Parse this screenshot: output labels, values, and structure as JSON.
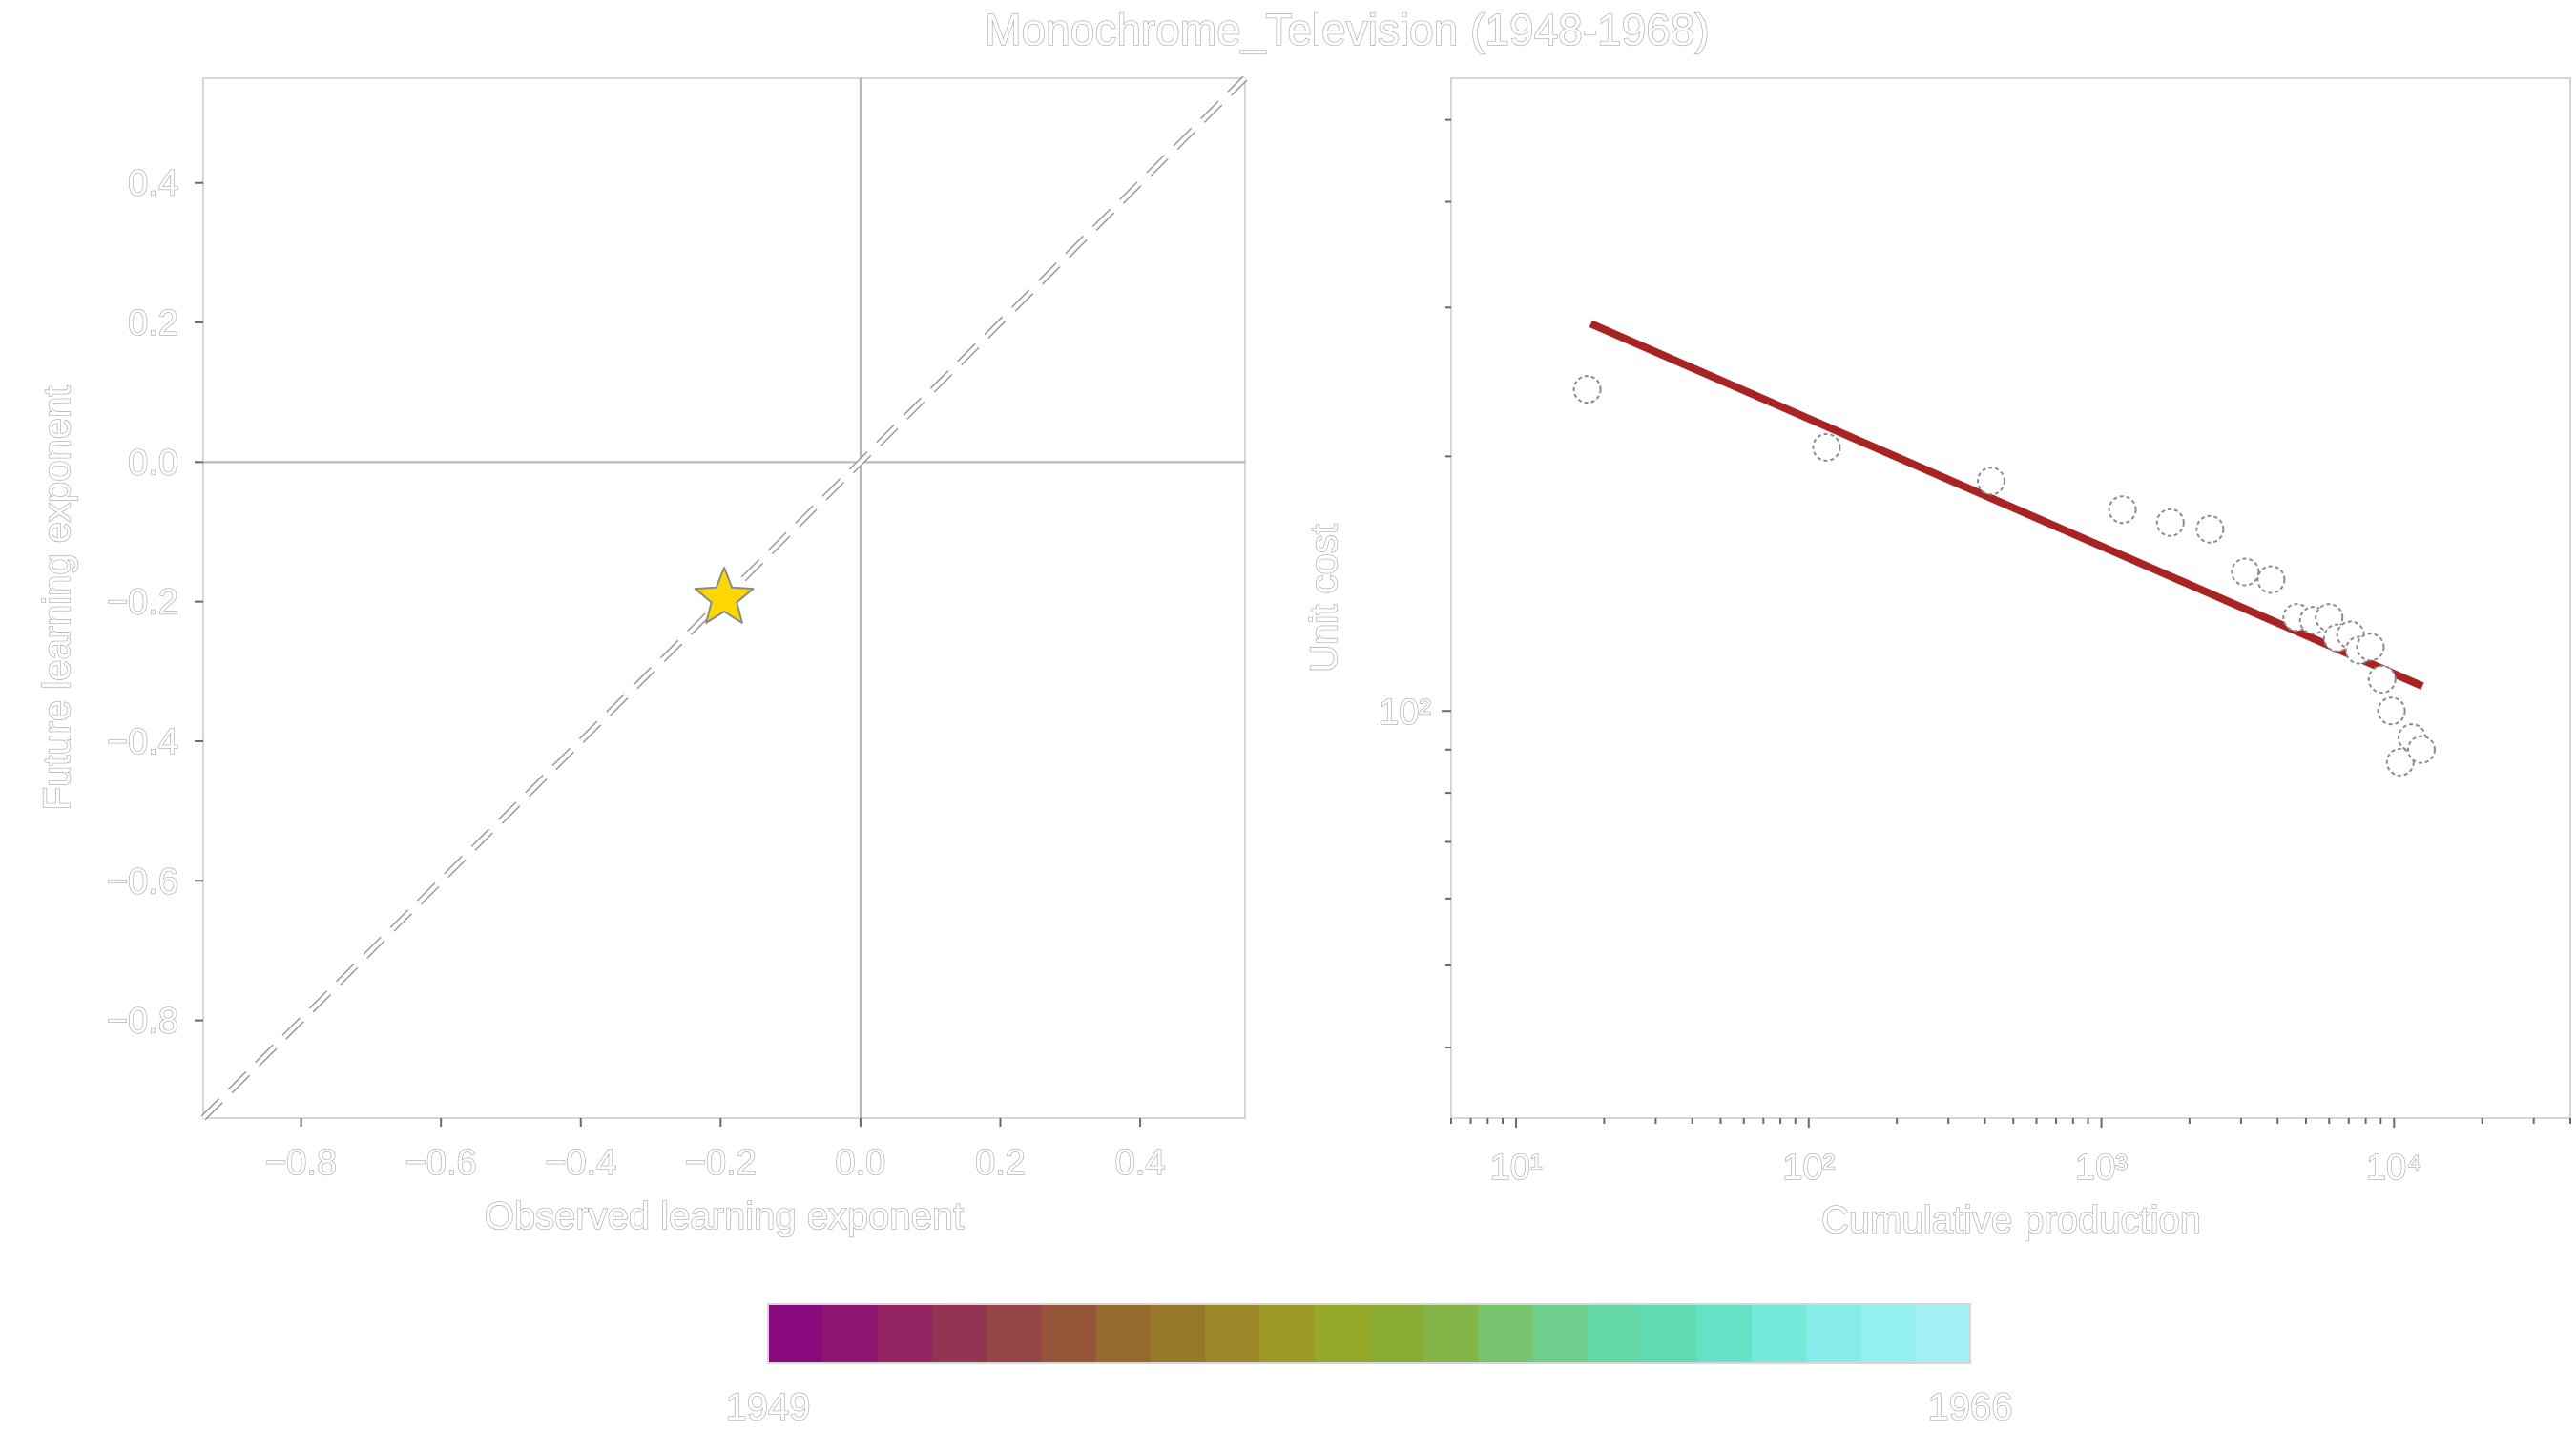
{
  "title": "Monochrome_Television (1948-1968)",
  "chart_data": [
    {
      "type": "scatter",
      "panel": "left",
      "xlabel": "Observed learning exponent",
      "ylabel": "Future learning exponent",
      "xlim": [
        -0.94,
        0.55
      ],
      "ylim": [
        -0.94,
        0.55
      ],
      "xticks": [
        -0.8,
        -0.6,
        -0.4,
        -0.2,
        0.0,
        0.2,
        0.4
      ],
      "xtick_labels": [
        "−0.8",
        "−0.6",
        "−0.4",
        "−0.2",
        "0.0",
        "0.2",
        "0.4"
      ],
      "yticks": [
        0.4,
        0.2,
        0.0,
        -0.2,
        -0.4,
        -0.6,
        -0.8
      ],
      "ytick_labels": [
        "0.4",
        "0.2",
        "0.0",
        "−0.2",
        "−0.4",
        "−0.6",
        "−0.8"
      ],
      "reference_lines": {
        "x": 0.0,
        "y": 0.0,
        "diagonal": "y = x (dashed)"
      },
      "points": [
        {
          "x": -0.195,
          "y": -0.195,
          "marker": "star",
          "color": "#FFD700"
        }
      ],
      "grid": false
    },
    {
      "type": "scatter",
      "panel": "right",
      "xlabel": "Cumulative production",
      "ylabel": "Unit cost",
      "xscale": "log",
      "yscale": "log",
      "xlim": [
        6,
        40000
      ],
      "ylim": [
        33,
        560
      ],
      "xtick_labels": [
        "10¹",
        "10²",
        "10³",
        "10⁴"
      ],
      "ytick_labels": [
        "10²"
      ],
      "fit_line": {
        "x": [
          18,
          12500
        ],
        "y": [
          287,
          107
        ],
        "color": "#a82323"
      },
      "points": [
        {
          "x": 17.5,
          "y": 240
        },
        {
          "x": 115,
          "y": 205
        },
        {
          "x": 420,
          "y": 187
        },
        {
          "x": 1180,
          "y": 173
        },
        {
          "x": 1720,
          "y": 167
        },
        {
          "x": 2350,
          "y": 164
        },
        {
          "x": 3100,
          "y": 146
        },
        {
          "x": 3800,
          "y": 143
        },
        {
          "x": 4650,
          "y": 129
        },
        {
          "x": 5300,
          "y": 128
        },
        {
          "x": 6000,
          "y": 129
        },
        {
          "x": 6400,
          "y": 122
        },
        {
          "x": 7100,
          "y": 123
        },
        {
          "x": 7600,
          "y": 118
        },
        {
          "x": 8300,
          "y": 119
        },
        {
          "x": 9100,
          "y": 109
        },
        {
          "x": 9800,
          "y": 100
        },
        {
          "x": 10500,
          "y": 87
        },
        {
          "x": 11500,
          "y": 93
        },
        {
          "x": 12400,
          "y": 90
        }
      ],
      "grid": false
    }
  ],
  "colorbar": {
    "min_label": "1949",
    "max_label": "1966",
    "colors": [
      "#880a7c",
      "#8e1670",
      "#922462",
      "#933453",
      "#944445",
      "#945437",
      "#966a2c",
      "#98782a",
      "#9b8727",
      "#9b9a25",
      "#96a828",
      "#8aae33",
      "#83b548",
      "#79c46f",
      "#6ecf8c",
      "#63d7a5",
      "#5fdcb3",
      "#64e2c7",
      "#74e8d9",
      "#85ecea",
      "#93eff0",
      "#a3f0f6"
    ]
  }
}
